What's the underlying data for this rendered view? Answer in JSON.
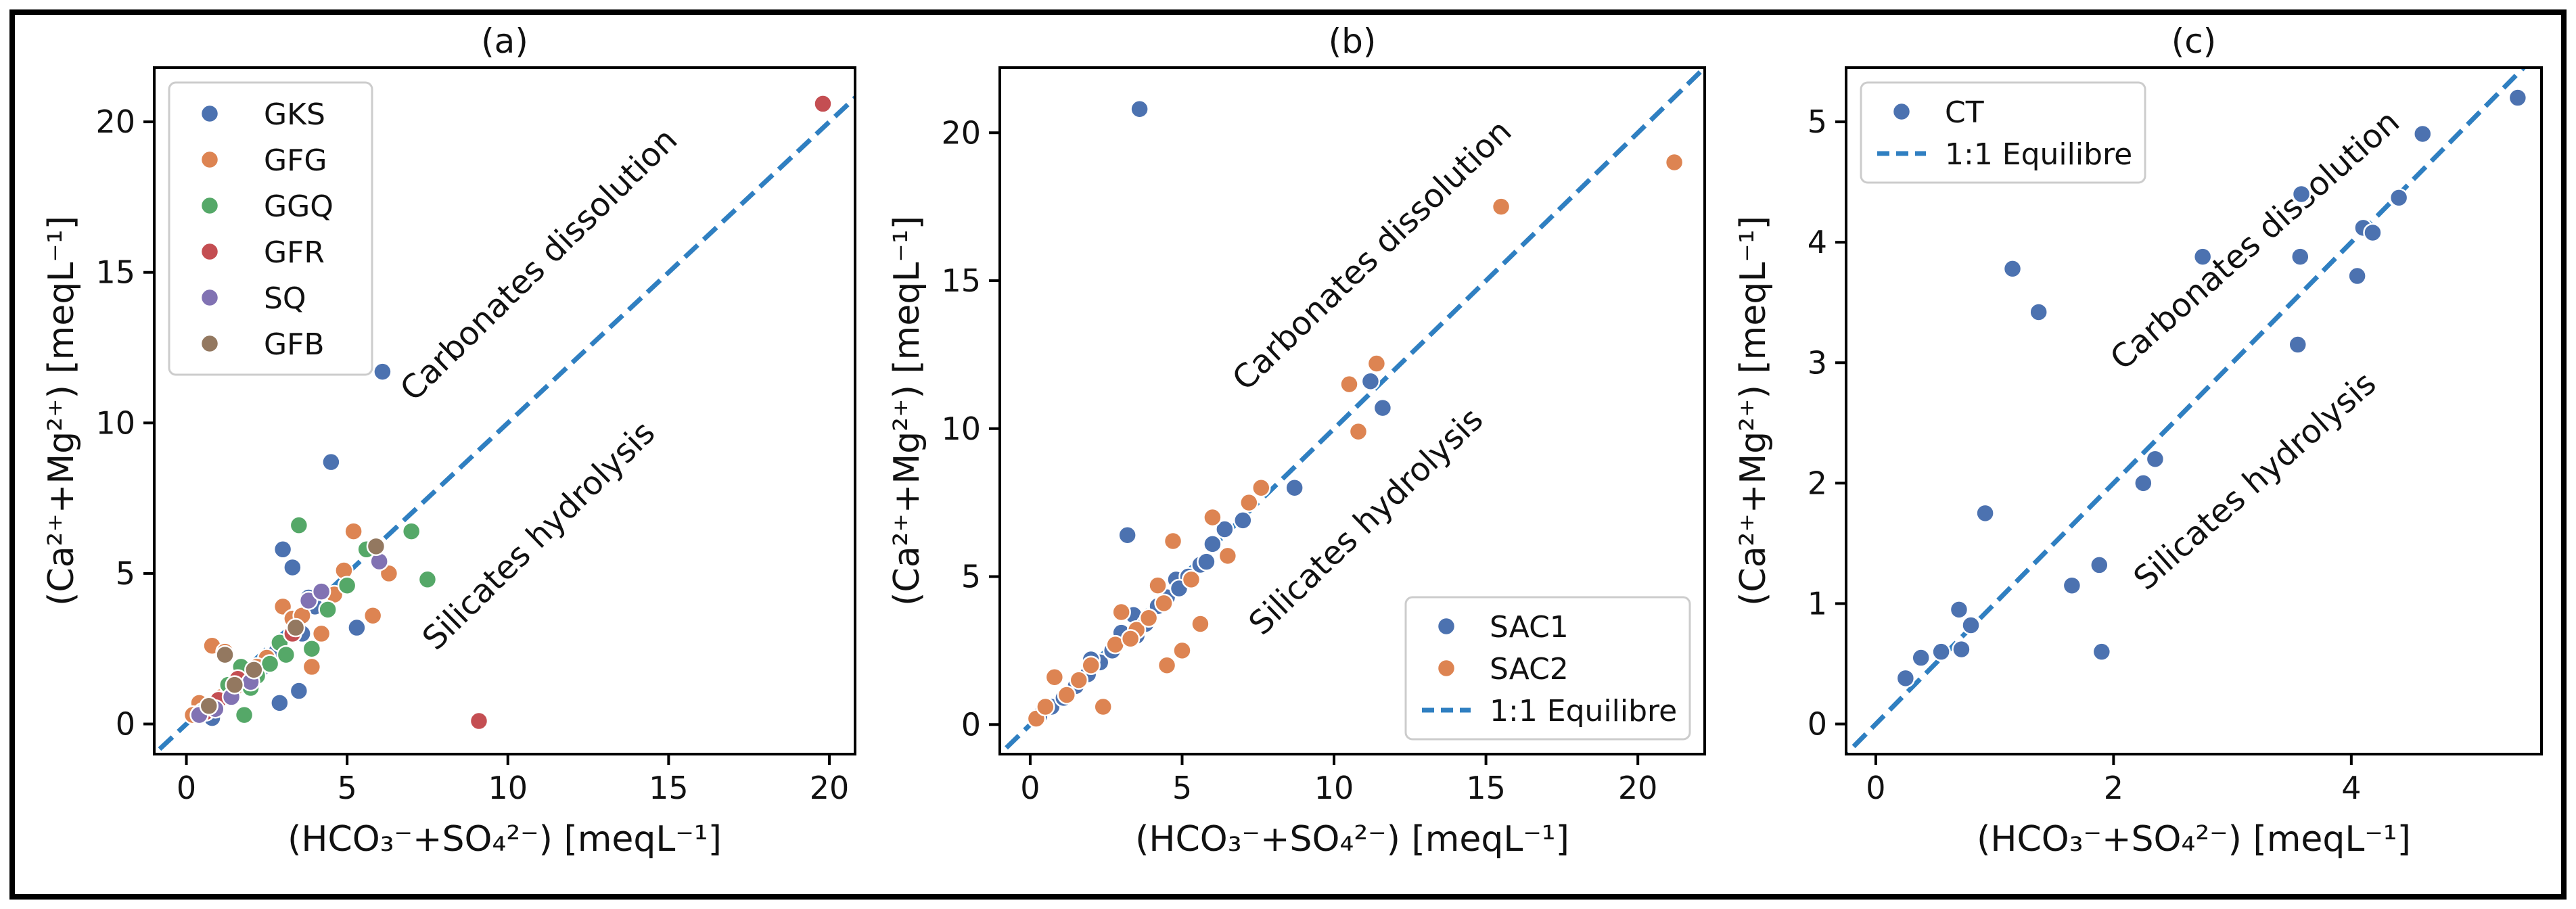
{
  "figure": {
    "xlabel": "(HCO₃⁻+SO₄²⁻) [meqL⁻¹]",
    "ylabel": "(Ca²⁺+Mg²⁺) [meqL⁻¹]",
    "upper_label": "Carbonates dissolution",
    "lower_label": "Silicates hydrolysis",
    "line_label": "1:1 Equilibre",
    "colors": {
      "GKS": "#4c72b0",
      "GFG": "#dd8452",
      "GGQ": "#55a868",
      "GFR": "#c44e52",
      "SQ": "#8172b3",
      "GFB": "#937860",
      "SAC1": "#4c72b0",
      "SAC2": "#dd8452",
      "CT": "#4c72b0",
      "line": "#2f7fc1"
    }
  },
  "chart_data": [
    {
      "type": "scatter",
      "title": "(a)",
      "xlim": [
        -1,
        20.8
      ],
      "ylim": [
        -1,
        21.8
      ],
      "xticks": [
        0,
        5,
        10,
        15,
        20
      ],
      "yticks": [
        0,
        5,
        10,
        15,
        20
      ],
      "legend": "top-left",
      "series": [
        {
          "name": "GKS",
          "points": [
            [
              0.3,
              0.3
            ],
            [
              0.6,
              0.5
            ],
            [
              1.0,
              0.8
            ],
            [
              1.4,
              1.1
            ],
            [
              1.8,
              1.5
            ],
            [
              2.3,
              1.8
            ],
            [
              2.8,
              2.4
            ],
            [
              3.0,
              5.8
            ],
            [
              3.3,
              5.2
            ],
            [
              3.5,
              1.1
            ],
            [
              3.6,
              3.0
            ],
            [
              4.0,
              3.9
            ],
            [
              4.5,
              8.7
            ],
            [
              5.3,
              3.2
            ],
            [
              6.1,
              11.7
            ],
            [
              2.9,
              0.7
            ],
            [
              3.8,
              4.2
            ],
            [
              0.8,
              0.2
            ]
          ]
        },
        {
          "name": "GFG",
          "points": [
            [
              0.4,
              0.7
            ],
            [
              0.8,
              2.6
            ],
            [
              1.2,
              2.4
            ],
            [
              1.5,
              1.2
            ],
            [
              2.0,
              1.6
            ],
            [
              2.5,
              2.2
            ],
            [
              3.0,
              3.9
            ],
            [
              3.3,
              3.5
            ],
            [
              3.9,
              1.9
            ],
            [
              4.2,
              3.0
            ],
            [
              4.6,
              4.3
            ],
            [
              5.2,
              6.4
            ],
            [
              5.8,
              3.6
            ],
            [
              6.3,
              5.0
            ],
            [
              0.2,
              0.3
            ],
            [
              1.1,
              0.9
            ],
            [
              2.2,
              1.9
            ],
            [
              3.6,
              3.6
            ],
            [
              4.9,
              5.1
            ]
          ]
        },
        {
          "name": "GGQ",
          "points": [
            [
              0.5,
              0.4
            ],
            [
              0.9,
              0.6
            ],
            [
              1.3,
              1.3
            ],
            [
              1.7,
              1.9
            ],
            [
              1.8,
              0.3
            ],
            [
              2.2,
              1.6
            ],
            [
              2.6,
              2.0
            ],
            [
              2.9,
              2.7
            ],
            [
              3.5,
              6.6
            ],
            [
              3.9,
              2.5
            ],
            [
              4.4,
              3.8
            ],
            [
              5.0,
              4.6
            ],
            [
              5.6,
              5.8
            ],
            [
              7.0,
              6.4
            ],
            [
              7.5,
              4.8
            ],
            [
              2.0,
              1.2
            ],
            [
              3.1,
              2.3
            ]
          ]
        },
        {
          "name": "GFR",
          "points": [
            [
              0.6,
              0.4
            ],
            [
              1.0,
              0.8
            ],
            [
              1.6,
              1.5
            ],
            [
              3.3,
              3.0
            ],
            [
              9.1,
              0.1
            ],
            [
              19.8,
              20.6
            ]
          ]
        },
        {
          "name": "SQ",
          "points": [
            [
              0.4,
              0.3
            ],
            [
              0.9,
              0.5
            ],
            [
              1.4,
              0.9
            ],
            [
              2.0,
              1.4
            ],
            [
              3.8,
              4.1
            ],
            [
              4.2,
              4.4
            ],
            [
              6.0,
              5.4
            ]
          ]
        },
        {
          "name": "GFB",
          "points": [
            [
              0.7,
              0.6
            ],
            [
              1.2,
              2.3
            ],
            [
              1.5,
              1.3
            ],
            [
              2.1,
              1.8
            ],
            [
              3.4,
              3.2
            ],
            [
              5.9,
              5.9
            ]
          ]
        }
      ]
    },
    {
      "type": "scatter",
      "title": "(b)",
      "xlim": [
        -1,
        22.2
      ],
      "ylim": [
        -1,
        22.2
      ],
      "xticks": [
        0,
        5,
        10,
        15,
        20
      ],
      "yticks": [
        0,
        5,
        10,
        15,
        20
      ],
      "legend": "bottom-right",
      "series": [
        {
          "name": "SAC1",
          "points": [
            [
              0.3,
              0.3
            ],
            [
              0.7,
              0.6
            ],
            [
              1.1,
              0.9
            ],
            [
              1.5,
              1.3
            ],
            [
              1.9,
              1.7
            ],
            [
              2.3,
              2.1
            ],
            [
              2.7,
              2.5
            ],
            [
              3.0,
              3.1
            ],
            [
              3.2,
              6.4
            ],
            [
              3.4,
              3.7
            ],
            [
              3.6,
              20.8
            ],
            [
              3.8,
              3.4
            ],
            [
              4.2,
              4.0
            ],
            [
              4.5,
              4.3
            ],
            [
              4.8,
              4.9
            ],
            [
              5.2,
              5.0
            ],
            [
              5.6,
              5.4
            ],
            [
              6.0,
              6.1
            ],
            [
              6.4,
              6.6
            ],
            [
              7.0,
              6.9
            ],
            [
              8.7,
              8.0
            ],
            [
              11.2,
              11.6
            ],
            [
              11.6,
              10.7
            ],
            [
              5.8,
              5.5
            ],
            [
              4.9,
              4.6
            ],
            [
              3.5,
              3.0
            ],
            [
              2.0,
              2.2
            ]
          ]
        },
        {
          "name": "SAC2",
          "points": [
            [
              0.2,
              0.2
            ],
            [
              0.5,
              0.6
            ],
            [
              0.8,
              1.6
            ],
            [
              1.2,
              1.0
            ],
            [
              1.6,
              1.5
            ],
            [
              2.0,
              2.0
            ],
            [
              2.4,
              0.6
            ],
            [
              2.8,
              2.7
            ],
            [
              3.0,
              3.8
            ],
            [
              3.5,
              3.2
            ],
            [
              3.9,
              3.6
            ],
            [
              4.2,
              4.7
            ],
            [
              4.5,
              2.0
            ],
            [
              4.7,
              6.2
            ],
            [
              5.0,
              2.5
            ],
            [
              5.3,
              4.9
            ],
            [
              5.6,
              3.4
            ],
            [
              6.0,
              7.0
            ],
            [
              6.5,
              5.7
            ],
            [
              7.2,
              7.5
            ],
            [
              7.6,
              8.0
            ],
            [
              10.5,
              11.5
            ],
            [
              10.8,
              9.9
            ],
            [
              11.4,
              12.2
            ],
            [
              15.5,
              17.5
            ],
            [
              21.2,
              19.0
            ],
            [
              4.4,
              4.1
            ],
            [
              3.3,
              2.9
            ]
          ]
        }
      ]
    },
    {
      "type": "scatter",
      "title": "(c)",
      "xlim": [
        -0.25,
        5.6
      ],
      "ylim": [
        -0.25,
        5.45
      ],
      "xticks": [
        0,
        2,
        4
      ],
      "yticks": [
        0,
        1,
        2,
        3,
        4,
        5
      ],
      "legend": "top-left",
      "series": [
        {
          "name": "CT",
          "points": [
            [
              0.25,
              0.38
            ],
            [
              0.38,
              0.55
            ],
            [
              0.55,
              0.6
            ],
            [
              0.7,
              0.95
            ],
            [
              0.72,
              0.62
            ],
            [
              0.8,
              0.82
            ],
            [
              0.92,
              1.75
            ],
            [
              1.15,
              3.78
            ],
            [
              1.37,
              3.42
            ],
            [
              1.65,
              1.15
            ],
            [
              1.88,
              1.32
            ],
            [
              1.9,
              0.6
            ],
            [
              2.25,
              2.0
            ],
            [
              2.35,
              2.2
            ],
            [
              2.75,
              3.88
            ],
            [
              3.55,
              3.15
            ],
            [
              3.57,
              3.88
            ],
            [
              3.58,
              4.4
            ],
            [
              4.05,
              3.72
            ],
            [
              4.1,
              4.12
            ],
            [
              4.18,
              4.08
            ],
            [
              4.4,
              4.37
            ],
            [
              4.6,
              4.9
            ],
            [
              5.4,
              5.2
            ]
          ]
        }
      ]
    }
  ]
}
